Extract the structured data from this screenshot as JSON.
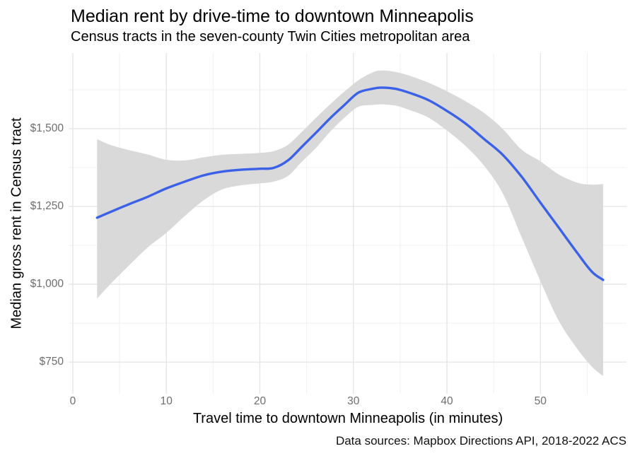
{
  "chart_data": {
    "type": "line",
    "subtype": "smoothed-line-with-confidence-ribbon",
    "title": "Median rent by drive-time to downtown Minneapolis",
    "subtitle": "Census tracts in the seven-county Twin Cities metropolitan area",
    "caption": "Data sources: Mapbox Directions API, 2018-2022 ACS",
    "xlabel": "Travel time to downtown Minneapolis (in minutes)",
    "ylabel": "Median gross rent in Census tract",
    "x_tick_values": [
      0,
      10,
      20,
      30,
      40,
      50
    ],
    "x_tick_labels": [
      "0",
      "10",
      "20",
      "30",
      "40",
      "50"
    ],
    "x_minor_tick_values": [
      5,
      15,
      25,
      35,
      45,
      55
    ],
    "y_tick_values": [
      750,
      1000,
      1250,
      1500
    ],
    "y_tick_labels": [
      "$750",
      "$1,000",
      "$1,250",
      "$1,500"
    ],
    "y_minor_tick_values": [
      875,
      1125,
      1375,
      1625
    ],
    "xlim": [
      -0.45,
      59.2
    ],
    "ylim": [
      648,
      1743
    ],
    "grid": true,
    "legend": false,
    "colors": {
      "line": "#3A61E8",
      "ribbon": "#D9D9D9",
      "grid_major": "#E4E4E4",
      "grid_minor": "#F0F0F0",
      "tick_text": "#6e6e6e",
      "title_text": "#000000"
    },
    "series": [
      {
        "name": "smoothed median gross rent vs drive time",
        "x": [
          2.6,
          4,
          6,
          8,
          10,
          12,
          14,
          16,
          18,
          20,
          21.5,
          23,
          24.5,
          26,
          27.5,
          29,
          30.5,
          32,
          33,
          34.5,
          36,
          38,
          40,
          42,
          44,
          46,
          48,
          50,
          52,
          54,
          55.5,
          56.7
        ],
        "y": [
          1214,
          1232,
          1257,
          1281,
          1308,
          1330,
          1350,
          1362,
          1368,
          1371,
          1374,
          1398,
          1442,
          1487,
          1533,
          1575,
          1615,
          1628,
          1632,
          1628,
          1615,
          1592,
          1557,
          1516,
          1466,
          1415,
          1345,
          1262,
          1180,
          1098,
          1040,
          1014
        ]
      },
      {
        "name": "confidence ribbon",
        "x": [
          2.6,
          4,
          6,
          8,
          10,
          12,
          14,
          16,
          18,
          20,
          21.5,
          23,
          24.5,
          26,
          27.5,
          29,
          30.5,
          32,
          33,
          34.5,
          36,
          38,
          40,
          42,
          44,
          46,
          48,
          50,
          52,
          54,
          55.5,
          56.7
        ],
        "upper": [
          1466,
          1448,
          1431,
          1417,
          1400,
          1398,
          1408,
          1416,
          1419,
          1422,
          1428,
          1448,
          1490,
          1535,
          1578,
          1618,
          1655,
          1680,
          1687,
          1682,
          1670,
          1648,
          1620,
          1588,
          1550,
          1498,
          1432,
          1395,
          1352,
          1326,
          1320,
          1322
        ],
        "lower": [
          954,
          1000,
          1060,
          1118,
          1165,
          1220,
          1270,
          1305,
          1318,
          1324,
          1330,
          1348,
          1394,
          1438,
          1490,
          1534,
          1570,
          1576,
          1578,
          1574,
          1560,
          1536,
          1494,
          1444,
          1380,
          1290,
          1150,
          1010,
          880,
          790,
          735,
          705
        ]
      }
    ]
  }
}
